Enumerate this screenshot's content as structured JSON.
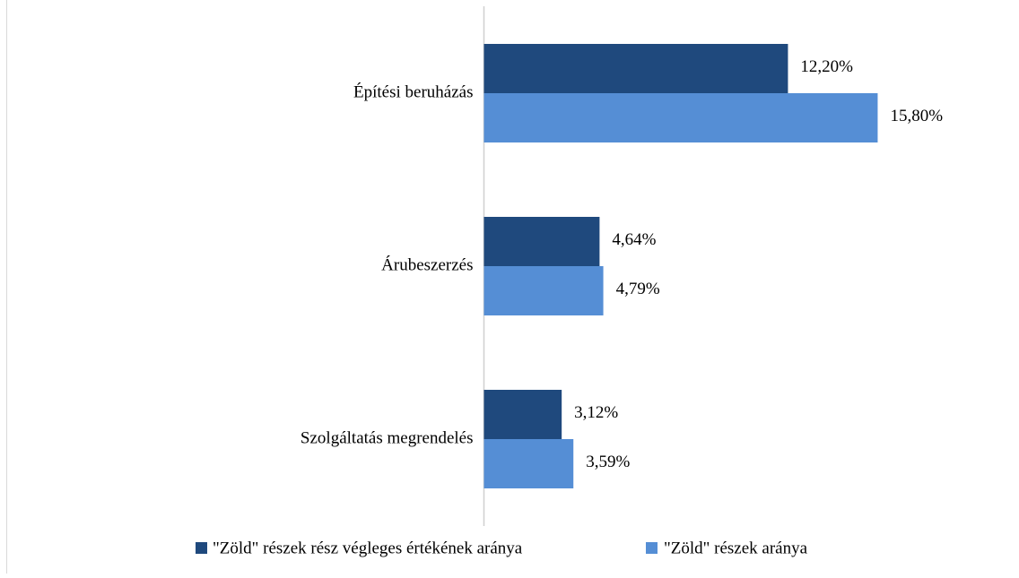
{
  "chart_data": {
    "type": "bar",
    "orientation": "horizontal",
    "categories": [
      "Építési beruházás",
      "Árubeszerzés",
      "Szolgáltatás megrendelés"
    ],
    "series": [
      {
        "name": "\"Zöld\" részek rész végleges értékének aránya",
        "color": "#1f497d",
        "values": [
          12.2,
          4.64,
          3.12
        ],
        "value_labels": [
          "12,20%",
          "4,64%",
          "3,12%"
        ]
      },
      {
        "name": "\"Zöld\" részek aránya",
        "color": "#558ed5",
        "values": [
          15.8,
          4.79,
          3.59
        ],
        "value_labels": [
          "15,80%",
          "4,79%",
          "3,59%"
        ]
      }
    ],
    "xlim": [
      0,
      16
    ],
    "legend": "bottom"
  }
}
